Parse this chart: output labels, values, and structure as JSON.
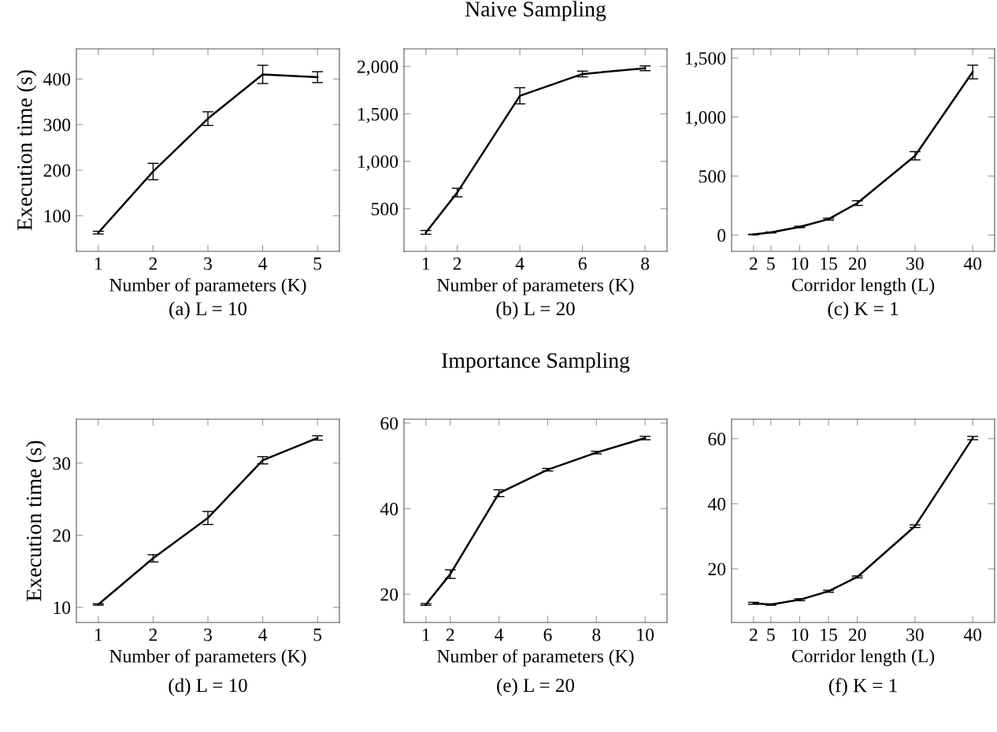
{
  "chart_data": [
    {
      "type": "line",
      "xlabel": "Number of parameters (K)",
      "ylabel": "Execution time (s)",
      "annotations": [
        "(a) L = 10"
      ],
      "x": [
        1,
        2,
        3,
        4,
        5
      ],
      "xlim": [
        0.6,
        5.4
      ],
      "xticks": [
        1,
        2,
        3,
        4,
        5
      ],
      "ylim": [
        22,
        466
      ],
      "yticks": [
        100,
        200,
        300,
        400
      ],
      "grid": false,
      "marker": "none",
      "line_style": "solid",
      "series": [
        {
          "color": "#000000",
          "values": [
            63,
            197,
            313,
            410,
            404
          ],
          "errors": [
            3,
            18,
            15,
            20,
            12
          ]
        }
      ]
    },
    {
      "type": "line",
      "title": "Naive Sampling",
      "xlabel": "Number of parameters (K)",
      "annotations": [
        "(b) L = 20"
      ],
      "x": [
        1,
        2,
        4,
        6,
        8
      ],
      "xlim": [
        0.3,
        8.7
      ],
      "xticks": [
        1,
        2,
        4,
        6,
        8
      ],
      "ylim": [
        50,
        2185
      ],
      "yticks": [
        {
          "value": 500,
          "label": "500"
        },
        {
          "value": 1000,
          "label": "1,000"
        },
        {
          "value": 1500,
          "label": "1,500"
        },
        {
          "value": 2000,
          "label": "2,000"
        }
      ],
      "grid": false,
      "marker": "none",
      "line_style": "solid",
      "series": [
        {
          "color": "#000000",
          "values": [
            250,
            670,
            1690,
            1920,
            1980
          ],
          "errors": [
            20,
            45,
            85,
            30,
            25
          ]
        }
      ]
    },
    {
      "type": "line",
      "xlabel": "Corridor length (L)",
      "annotations": [
        "(c) K = 1"
      ],
      "x": [
        2,
        5,
        10,
        15,
        20,
        30,
        40
      ],
      "xlim": [
        -1.8,
        43.8
      ],
      "xticks": [
        2,
        5,
        10,
        15,
        20,
        30,
        40
      ],
      "ylim": [
        -138,
        1578
      ],
      "yticks": [
        0,
        500,
        {
          "value": 1000,
          "label": "1,000"
        },
        {
          "value": 1500,
          "label": "1,500"
        }
      ],
      "grid": false,
      "marker": "none",
      "line_style": "solid",
      "series": [
        {
          "color": "#000000",
          "values": [
            5,
            22,
            69,
            135,
            271,
            672,
            1382
          ],
          "errors": [
            2,
            4,
            6,
            8,
            20,
            35,
            58
          ]
        }
      ]
    },
    {
      "type": "line",
      "xlabel": "Number of parameters (K)",
      "ylabel": "Execution time (s)",
      "annotations": [
        "(d) L = 10"
      ],
      "x": [
        1,
        2,
        3,
        4,
        5
      ],
      "xlim": [
        0.6,
        5.4
      ],
      "xticks": [
        1,
        2,
        3,
        4,
        5
      ],
      "ylim": [
        7.9,
        36.1
      ],
      "yticks": [
        10,
        20,
        30
      ],
      "grid": false,
      "marker": "none",
      "line_style": "solid",
      "series": [
        {
          "color": "#000000",
          "values": [
            10.4,
            16.8,
            22.4,
            30.4,
            33.5
          ],
          "errors": [
            0.1,
            0.5,
            0.9,
            0.5,
            0.3
          ]
        }
      ]
    },
    {
      "type": "line",
      "title": "Importance Sampling",
      "xlabel": "Number of parameters (K)",
      "annotations": [
        "(e) L = 20"
      ],
      "x": [
        1,
        2,
        4,
        6,
        8,
        10
      ],
      "xlim": [
        0.1,
        10.9
      ],
      "xticks": [
        1,
        2,
        4,
        6,
        8,
        10
      ],
      "ylim": [
        13.4,
        60.9
      ],
      "yticks": [
        20,
        40,
        60
      ],
      "grid": false,
      "marker": "none",
      "line_style": "solid",
      "series": [
        {
          "color": "#000000",
          "values": [
            17.6,
            24.7,
            43.6,
            49.1,
            53.1,
            56.5
          ],
          "errors": [
            0.2,
            1,
            0.8,
            0.3,
            0.3,
            0.4
          ]
        }
      ]
    },
    {
      "type": "line",
      "xlabel": "Corridor length (L)",
      "annotations": [
        "(f) K = 1"
      ],
      "x": [
        2,
        5,
        10,
        15,
        20,
        30,
        40
      ],
      "xlim": [
        -1.8,
        43.8
      ],
      "xticks": [
        2,
        5,
        10,
        15,
        20,
        30,
        40
      ],
      "ylim": [
        3.5,
        66
      ],
      "yticks": [
        20,
        40,
        60
      ],
      "grid": false,
      "marker": "none",
      "line_style": "solid",
      "series": [
        {
          "color": "#000000",
          "values": [
            9.4,
            9.0,
            10.5,
            13.1,
            17.5,
            33.1,
            60.2
          ],
          "errors": [
            0.3,
            0.2,
            0.3,
            0.3,
            0.3,
            0.4,
            0.5
          ]
        }
      ]
    }
  ]
}
